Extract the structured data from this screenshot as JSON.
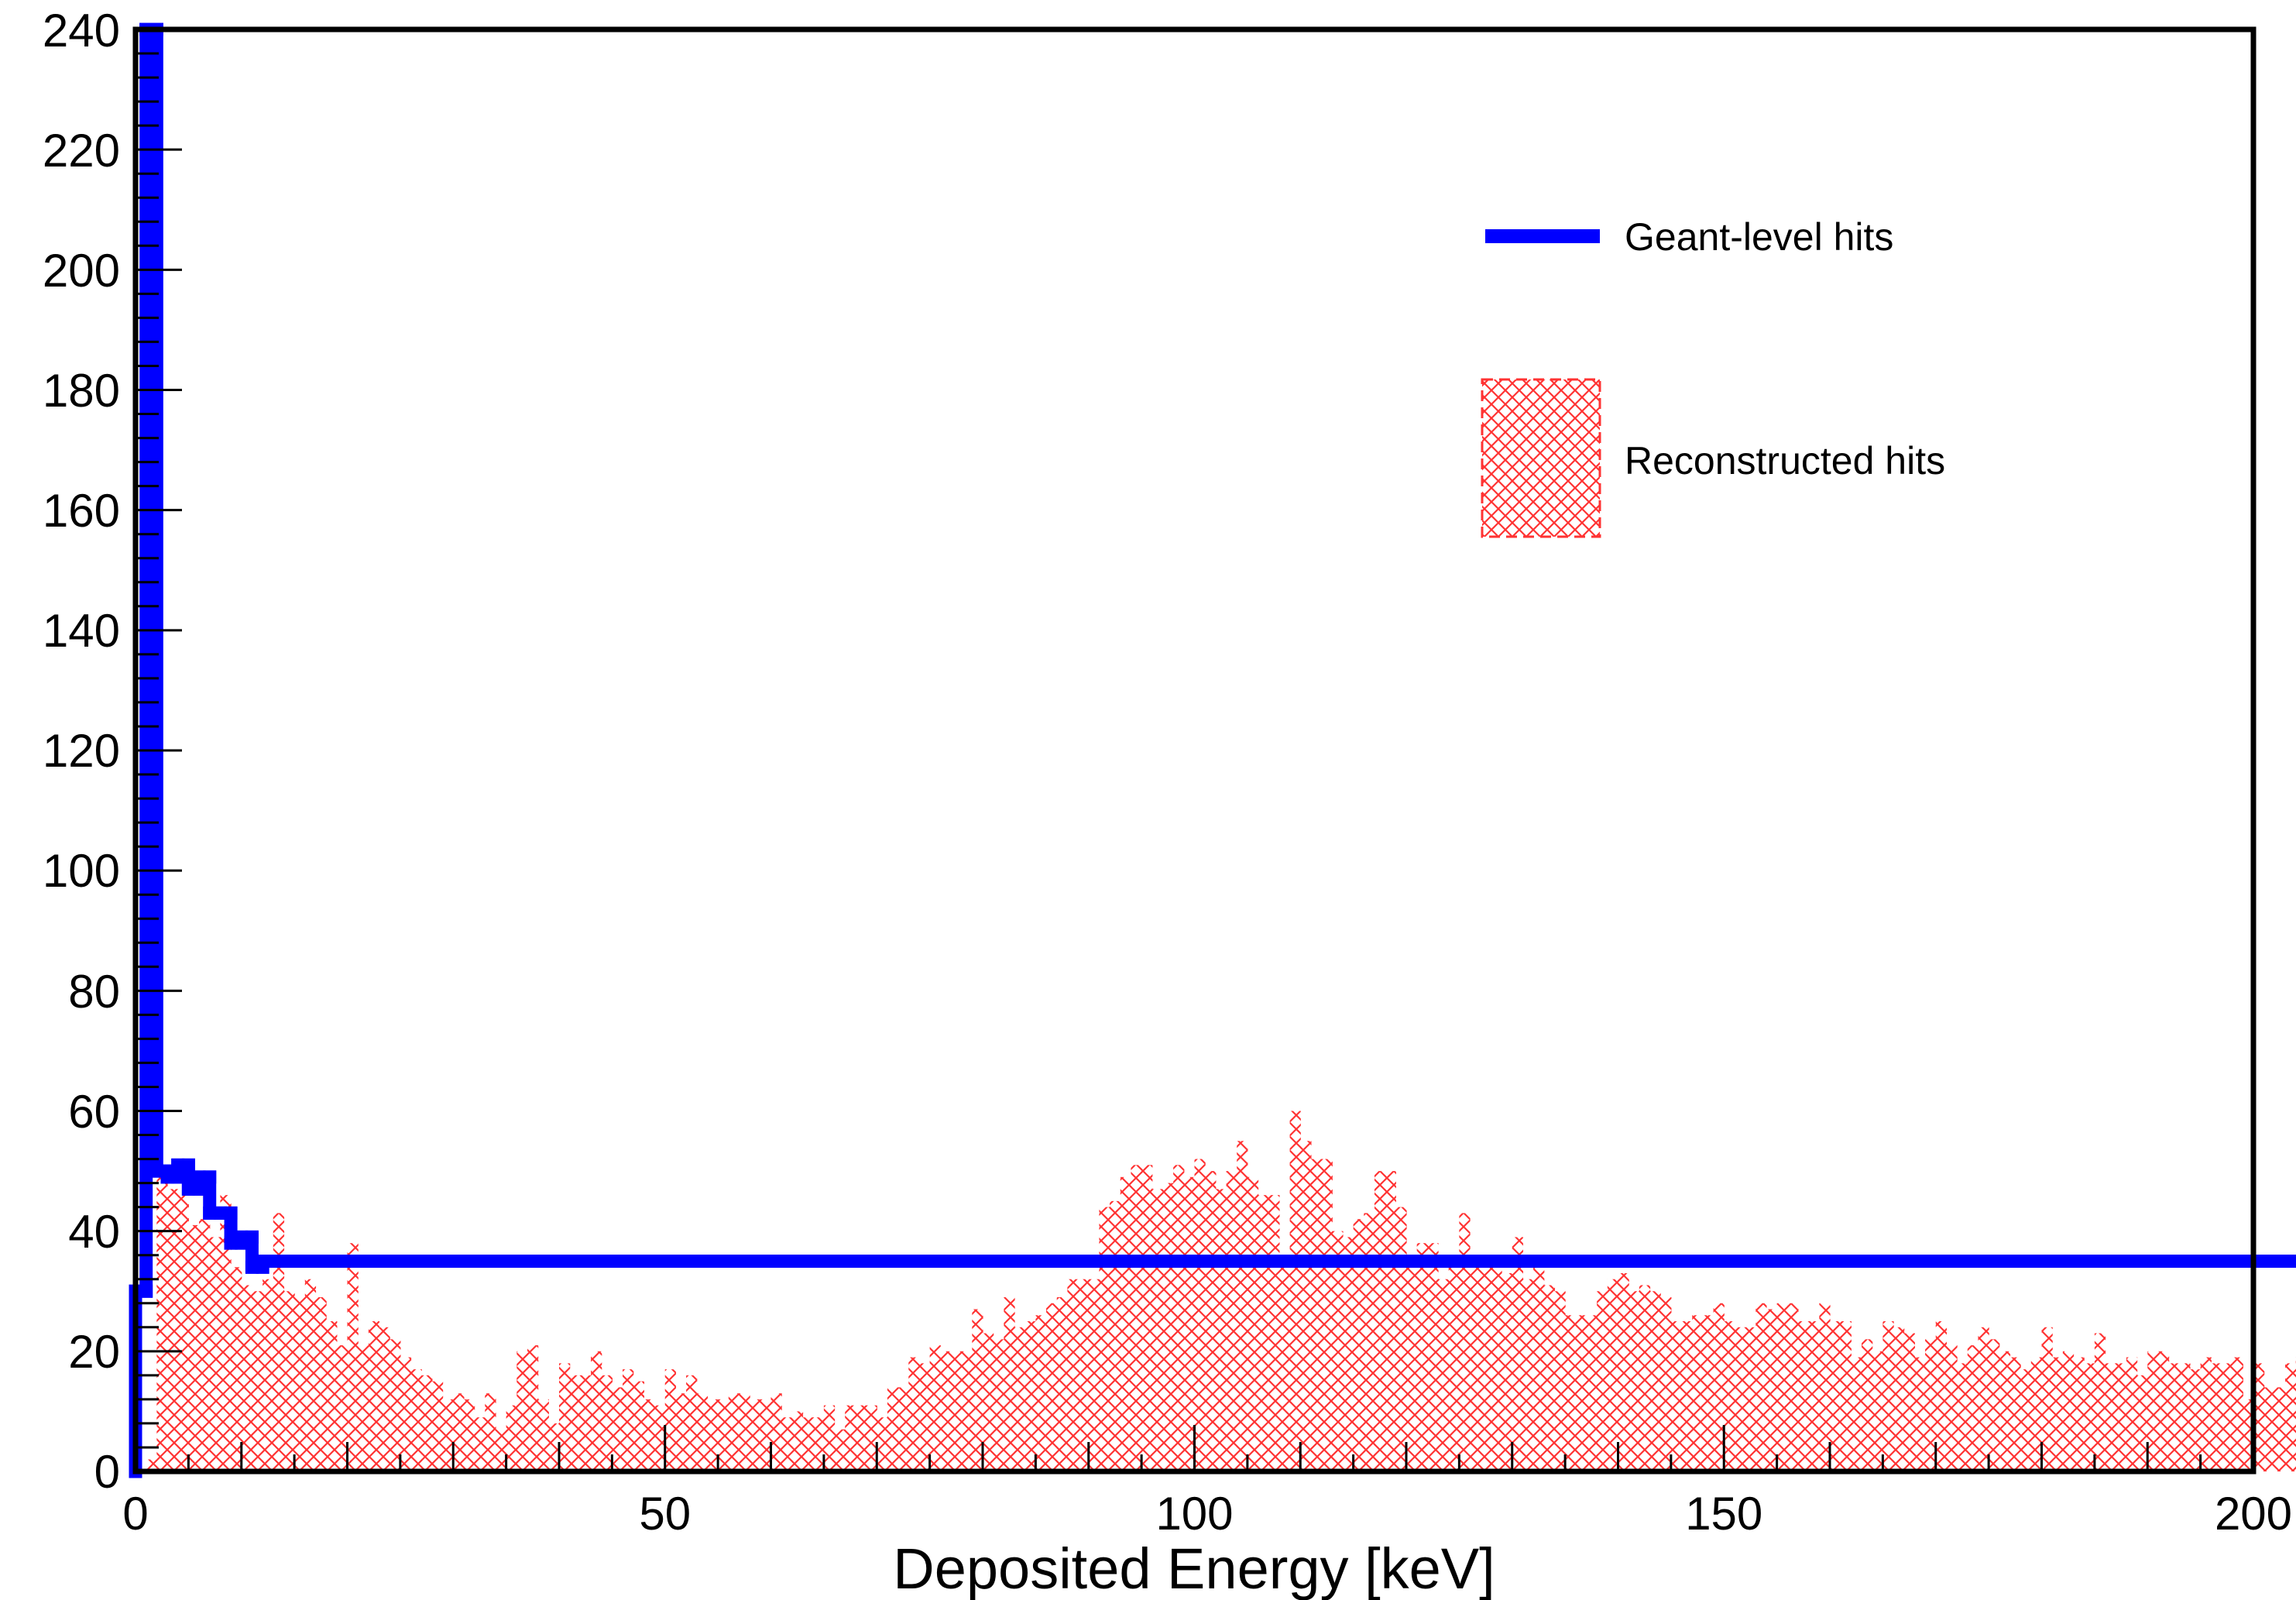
{
  "chart_data": {
    "type": "histogram",
    "title": "",
    "xlabel": "Deposited Energy [keV]",
    "ylabel": "",
    "xlim": [
      0,
      200
    ],
    "ylim": [
      0,
      240
    ],
    "bin_width": 1,
    "grid": false,
    "legend_position": "top-right",
    "x_ticks": [
      "0",
      "50",
      "100",
      "150",
      "200"
    ],
    "y_ticks": [
      "0",
      "20",
      "40",
      "60",
      "80",
      "100",
      "120",
      "140",
      "160",
      "180",
      "200",
      "220",
      "240"
    ],
    "series": [
      {
        "name": "Geant-level hits",
        "style": "line",
        "color": "#0000ff",
        "values": [
          30,
          240,
          50,
          49,
          51,
          47,
          49,
          43,
          43,
          38,
          39,
          34,
          35,
          35,
          35,
          35,
          35,
          35,
          35,
          35,
          35,
          35,
          35,
          35,
          35,
          35,
          35,
          35,
          35,
          35,
          35,
          35,
          35,
          35,
          35,
          35,
          35,
          35,
          35,
          35,
          35,
          35,
          35,
          35,
          35,
          35,
          35,
          35,
          35,
          35,
          35,
          35,
          35,
          35,
          35,
          35,
          35,
          35,
          35,
          35,
          35,
          35,
          35,
          35,
          35,
          35,
          35,
          35,
          35,
          35,
          35,
          35,
          35,
          35,
          35,
          35,
          35,
          35,
          35,
          35,
          35,
          35,
          35,
          35,
          35,
          35,
          35,
          35,
          35,
          35,
          35,
          35,
          35,
          35,
          35,
          35,
          35,
          35,
          35,
          35,
          35,
          35,
          35,
          35,
          35,
          35,
          35,
          35,
          35,
          35,
          35,
          35,
          35,
          35,
          35,
          35,
          35,
          35,
          35,
          35,
          35,
          35,
          35,
          35,
          35,
          35,
          35,
          35,
          35,
          35,
          35,
          35,
          35,
          35,
          35,
          35,
          35,
          35,
          35,
          35,
          35,
          35,
          35,
          35,
          35,
          35,
          35,
          35,
          35,
          35,
          35,
          35,
          35,
          35,
          35,
          35,
          35,
          35,
          35,
          35,
          35,
          35,
          35,
          35,
          35,
          35,
          35,
          35,
          35,
          35,
          35,
          35,
          35,
          35,
          35,
          35,
          35,
          35,
          35,
          35,
          35,
          35,
          35,
          35,
          35,
          35,
          35,
          35,
          35,
          35,
          35,
          35,
          35,
          35,
          35,
          35,
          35,
          35,
          35,
          35,
          35,
          35,
          35,
          35,
          35,
          35,
          35,
          35,
          35,
          35,
          35,
          35,
          35
        ]
      },
      {
        "name": "Reconstructed hits",
        "style": "hatched",
        "color": "#ff3333",
        "values": [
          0,
          2,
          49,
          47,
          46,
          41,
          42,
          39,
          46,
          34,
          31,
          30,
          32,
          43,
          30,
          29,
          32,
          29,
          25,
          21,
          38,
          21,
          25,
          24,
          22,
          19,
          17,
          16,
          15,
          12,
          13,
          12,
          9,
          13,
          7,
          11,
          20,
          21,
          12,
          8,
          18,
          16,
          16,
          20,
          16,
          14,
          17,
          15,
          12,
          11,
          17,
          13,
          16,
          13,
          12,
          12,
          13,
          13,
          12,
          12,
          13,
          9,
          10,
          9,
          9,
          11,
          7,
          11,
          11,
          11,
          9,
          14,
          14,
          19,
          18,
          21,
          20,
          20,
          20,
          27,
          23,
          22,
          29,
          24,
          25,
          26,
          28,
          29,
          32,
          32,
          32,
          44,
          45,
          49,
          51,
          51,
          47,
          48,
          51,
          49,
          52,
          50,
          47,
          50,
          55,
          49,
          46,
          46,
          36,
          60,
          55,
          52,
          52,
          40,
          39,
          42,
          43,
          50,
          50,
          44,
          34,
          38,
          38,
          32,
          34,
          43,
          36,
          34,
          35,
          33,
          39,
          32,
          34,
          31,
          30,
          26,
          26,
          26,
          30,
          32,
          33,
          30,
          31,
          30,
          29,
          25,
          25,
          26,
          26,
          28,
          25,
          24,
          24,
          28,
          27,
          28,
          28,
          25,
          25,
          28,
          25,
          25,
          19,
          22,
          20,
          25,
          24,
          23,
          19,
          22,
          25,
          21,
          18,
          21,
          24,
          22,
          20,
          19,
          17,
          19,
          24,
          19,
          20,
          19,
          18,
          23,
          18,
          18,
          19,
          16,
          20,
          20,
          18,
          18,
          17,
          19,
          18,
          18,
          19,
          12,
          18,
          14,
          14,
          18,
          19,
          19,
          18,
          17,
          16,
          15,
          14,
          12
        ]
      }
    ]
  }
}
